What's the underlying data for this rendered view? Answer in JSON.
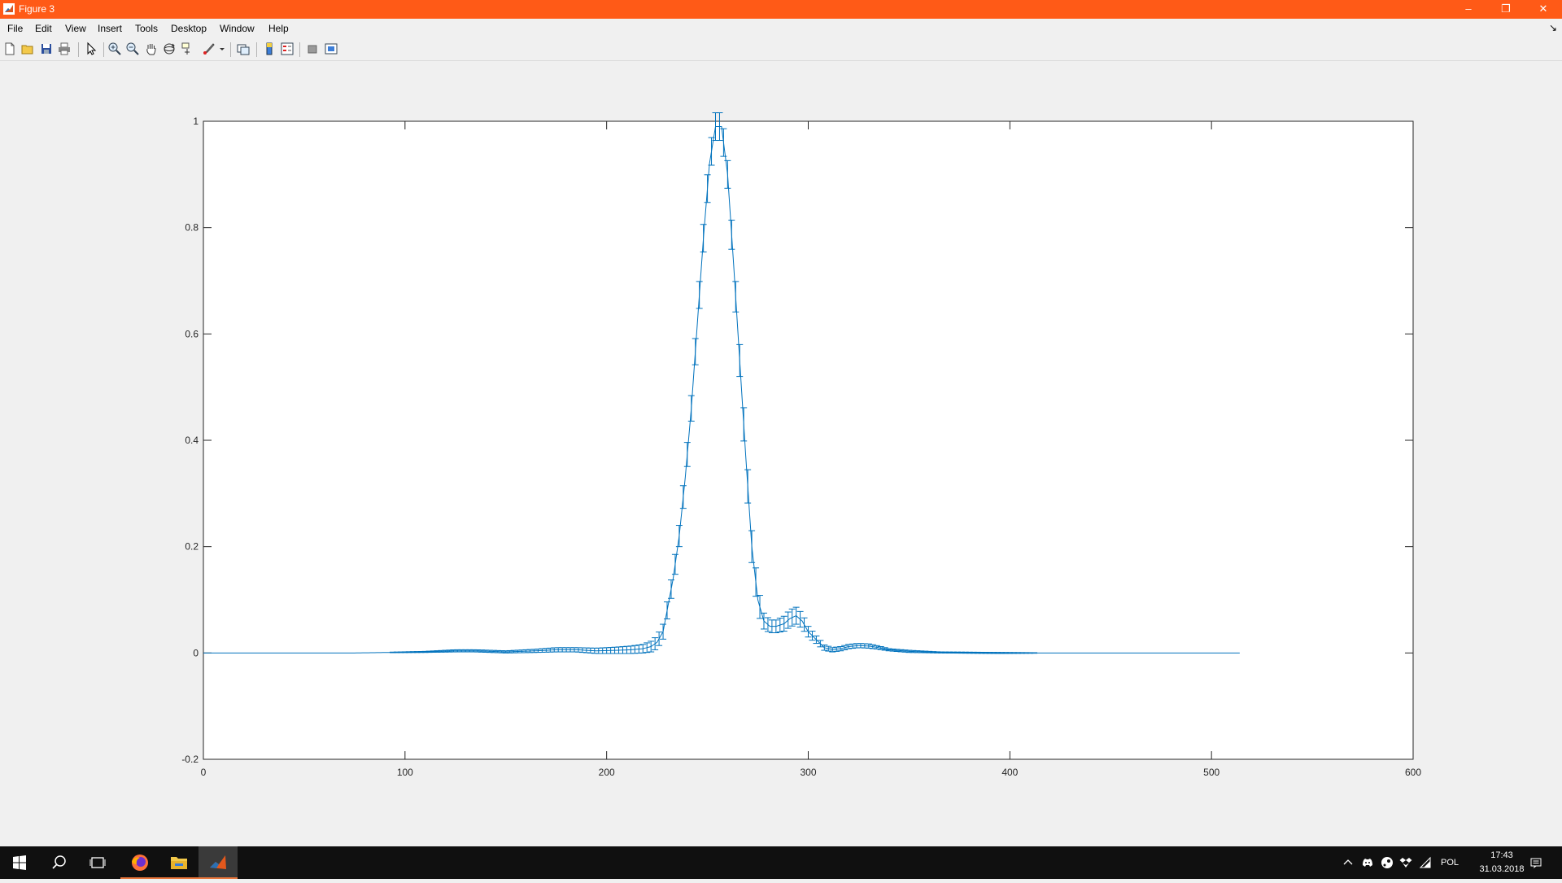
{
  "window": {
    "title": "Figure 3",
    "controls": {
      "minimize": "–",
      "restore": "❐",
      "close": "✕"
    }
  },
  "menu": {
    "items": [
      "File",
      "Edit",
      "View",
      "Insert",
      "Tools",
      "Desktop",
      "Window",
      "Help"
    ]
  },
  "toolbar": {
    "icons": [
      "new-figure-icon",
      "open-file-icon",
      "save-icon",
      "print-icon",
      "edit-plot-icon",
      "zoom-in-icon",
      "zoom-out-icon",
      "pan-icon",
      "rotate-3d-icon",
      "data-cursor-icon",
      "brush-icon",
      "link-plot-icon",
      "insert-colorbar-icon",
      "insert-legend-icon",
      "hide-plot-tools-icon",
      "show-plot-tools-icon"
    ]
  },
  "chart_data": {
    "type": "line",
    "title": "",
    "xlabel": "",
    "ylabel": "",
    "xlim": [
      0,
      600
    ],
    "ylim": [
      -0.2,
      1
    ],
    "xticks": [
      "0",
      "100",
      "200",
      "300",
      "400",
      "500",
      "600"
    ],
    "yticks": [
      "-0.2",
      "0",
      "0.2",
      "0.4",
      "0.6",
      "0.8",
      "1"
    ],
    "series": [
      {
        "color": "#0072bd",
        "error_bars": true,
        "x": [
          0,
          75,
          110,
          125,
          135,
          150,
          165,
          175,
          185,
          195,
          205,
          212,
          218,
          222,
          225,
          228,
          230,
          233,
          236,
          239,
          242,
          245,
          248,
          251,
          254,
          257,
          260,
          263,
          266,
          269,
          272,
          275,
          278,
          281,
          284,
          288,
          291,
          294,
          297,
          300,
          304,
          308,
          312,
          316,
          320,
          325,
          330,
          335,
          340,
          350,
          365,
          395,
          430,
          514
        ],
        "y": [
          0,
          0,
          0.002,
          0.004,
          0.004,
          0.002,
          0.004,
          0.006,
          0.006,
          0.004,
          0.005,
          0.006,
          0.008,
          0.012,
          0.02,
          0.04,
          0.08,
          0.14,
          0.22,
          0.33,
          0.46,
          0.62,
          0.78,
          0.92,
          0.99,
          0.99,
          0.9,
          0.73,
          0.55,
          0.37,
          0.2,
          0.1,
          0.06,
          0.05,
          0.05,
          0.055,
          0.065,
          0.07,
          0.06,
          0.04,
          0.025,
          0.01,
          0.006,
          0.008,
          0.012,
          0.014,
          0.013,
          0.01,
          0.006,
          0.003,
          0.001,
          0.0,
          0.0,
          0.0
        ],
        "err": [
          0,
          0,
          0.001,
          0.002,
          0.002,
          0.002,
          0.003,
          0.004,
          0.004,
          0.005,
          0.006,
          0.007,
          0.008,
          0.01,
          0.012,
          0.014,
          0.016,
          0.018,
          0.02,
          0.022,
          0.024,
          0.025,
          0.026,
          0.026,
          0.026,
          0.026,
          0.026,
          0.028,
          0.03,
          0.032,
          0.03,
          0.025,
          0.015,
          0.012,
          0.012,
          0.014,
          0.016,
          0.016,
          0.014,
          0.01,
          0.007,
          0.005,
          0.004,
          0.004,
          0.004,
          0.004,
          0.004,
          0.003,
          0.002,
          0.002,
          0.001,
          0.001,
          0.0,
          0.0
        ]
      }
    ]
  },
  "taskbar": {
    "apps": [
      "windows-start-icon",
      "search-icon",
      "task-view-icon",
      "firefox-icon",
      "file-explorer-icon",
      "matlab-icon"
    ],
    "tray": {
      "language": "POL",
      "time": "17:43",
      "date": "31.03.2018"
    }
  }
}
